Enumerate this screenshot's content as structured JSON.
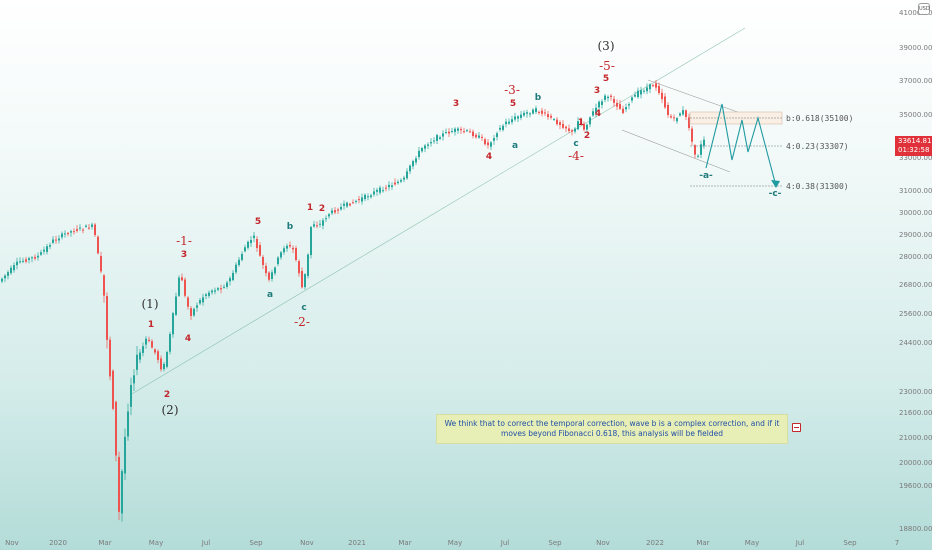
{
  "chart_data": {
    "type": "candlestick",
    "instrument_currency": "USD",
    "current_price": "33614.81",
    "countdown": "01:32:58",
    "y_axis": {
      "ticks": [
        "41000.00",
        "39000.00",
        "37000.00",
        "35000.00",
        "33000.00",
        "31000.00",
        "30000.00",
        "29000.00",
        "28000.00",
        "26800.00",
        "25600.00",
        "24400.00",
        "23000.00",
        "21600.00",
        "21000.00",
        "20000.00",
        "19600.00",
        "18800.00"
      ]
    },
    "x_axis": {
      "ticks": [
        "Nov",
        "2020",
        "Mar",
        "May",
        "Jul",
        "Sep",
        "Nov",
        "2021",
        "Mar",
        "May",
        "Jul",
        "Sep",
        "Nov",
        "2022",
        "Mar",
        "May",
        "Jul",
        "Sep",
        "7"
      ]
    },
    "fib_levels": [
      {
        "label": "b:0.618(35100)",
        "value": 35100
      },
      {
        "label": "4:0.23(33307)",
        "value": 33307
      },
      {
        "label": "4:0.38(31300)",
        "value": 31300
      }
    ],
    "wave_labels": [
      {
        "text": "(1)",
        "style": "dark"
      },
      {
        "text": "1",
        "style": "red"
      },
      {
        "text": "2",
        "style": "red"
      },
      {
        "text": "(2)",
        "style": "dark"
      },
      {
        "text": "-1-",
        "style": "red-big"
      },
      {
        "text": "3",
        "style": "red"
      },
      {
        "text": "4",
        "style": "red"
      },
      {
        "text": "5",
        "style": "red"
      },
      {
        "text": "a",
        "style": "teal"
      },
      {
        "text": "b",
        "style": "teal"
      },
      {
        "text": "c",
        "style": "teal"
      },
      {
        "text": "-2-",
        "style": "red-big"
      },
      {
        "text": "1",
        "style": "red"
      },
      {
        "text": "2",
        "style": "red"
      },
      {
        "text": "3",
        "style": "red"
      },
      {
        "text": "4",
        "style": "red"
      },
      {
        "text": "-3-",
        "style": "red-big"
      },
      {
        "text": "5",
        "style": "red"
      },
      {
        "text": "a",
        "style": "teal"
      },
      {
        "text": "b",
        "style": "teal"
      },
      {
        "text": "c",
        "style": "teal"
      },
      {
        "text": "-4-",
        "style": "red-big"
      },
      {
        "text": "1",
        "style": "red"
      },
      {
        "text": "2",
        "style": "red"
      },
      {
        "text": "3",
        "style": "red"
      },
      {
        "text": "4",
        "style": "red"
      },
      {
        "text": "5",
        "style": "red"
      },
      {
        "text": "-5-",
        "style": "red-big"
      },
      {
        "text": "(3)",
        "style": "dark"
      },
      {
        "text": "-a-",
        "style": "teal"
      },
      {
        "text": "-c-",
        "style": "teal"
      }
    ],
    "note": "We think that to correct the temporal correction, wave b is a complex correction, and if it moves beyond Fibonacci 0.618, this analysis will be fielded",
    "colors": {
      "up": "#26a69a",
      "down": "#ef5350",
      "wave_red": "#c3262b",
      "wave_teal": "#1f7c7c",
      "price_badge": "#e0313a",
      "note_bg": "#e8efb6",
      "note_text": "#1f4ea8"
    }
  }
}
